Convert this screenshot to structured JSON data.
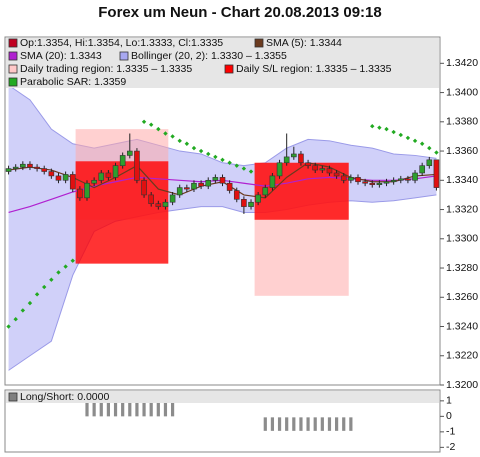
{
  "chart_data": [
    {
      "type": "candlestick",
      "title": "Forex um Neun - Chart 20.08.2013 09:18",
      "legend": [
        {
          "label": "Op:1.3354, Hi:1.3354, Lo:1.3333, Cl:1.3335",
          "color": "#c00020"
        },
        {
          "label": "SMA (5): 1.3344",
          "color": "#6b3a1e"
        },
        {
          "label": "SMA (20): 1.3343",
          "color": "#b020d0"
        },
        {
          "label": "Bollinger (20, 2): 1.3330 – 1.3355",
          "color": "#a8a8f0"
        },
        {
          "label": "Daily trading region: 1.3335 – 1.3335",
          "color": "#ffc8c8"
        },
        {
          "label": "Daily S/L region: 1.3335 – 1.3335",
          "color": "#ff0000"
        },
        {
          "label": "Parabolic SAR: 1.3359",
          "color": "#22aa22"
        }
      ],
      "up_color": "#2e9e2e",
      "down_color": "#e01010",
      "open": [
        1.3346,
        1.3348,
        1.3349,
        1.3351,
        1.3349,
        1.3348,
        1.3346,
        1.3343,
        1.334,
        1.3344,
        1.3334,
        1.3328,
        1.3338,
        1.334,
        1.3345,
        1.3342,
        1.335,
        1.3357,
        1.336,
        1.334,
        1.333,
        1.3324,
        1.3322,
        1.3325,
        1.333,
        1.3335,
        1.3334,
        1.3338,
        1.3336,
        1.334,
        1.3342,
        1.3338,
        1.3333,
        1.3327,
        1.3322,
        1.3325,
        1.333,
        1.3335,
        1.3343,
        1.3352,
        1.3356,
        1.3358,
        1.3352,
        1.335,
        1.3347,
        1.3348,
        1.3345,
        1.3343,
        1.334,
        1.3342,
        1.3339,
        1.3338,
        1.3337,
        1.3338,
        1.3339,
        1.334,
        1.3341,
        1.334,
        1.3345,
        1.335,
        1.3354
      ],
      "high": [
        1.335,
        1.3351,
        1.3353,
        1.3353,
        1.3351,
        1.335,
        1.3348,
        1.3345,
        1.3346,
        1.3346,
        1.3336,
        1.334,
        1.3342,
        1.3347,
        1.3347,
        1.3352,
        1.3359,
        1.3372,
        1.3362,
        1.3342,
        1.3332,
        1.3326,
        1.3327,
        1.3332,
        1.3337,
        1.3337,
        1.334,
        1.334,
        1.3342,
        1.3344,
        1.3344,
        1.334,
        1.3335,
        1.3329,
        1.3327,
        1.3332,
        1.3337,
        1.3345,
        1.3354,
        1.3372,
        1.3363,
        1.336,
        1.3354,
        1.3352,
        1.335,
        1.335,
        1.3347,
        1.3345,
        1.3344,
        1.3344,
        1.3341,
        1.334,
        1.334,
        1.3341,
        1.3342,
        1.3343,
        1.3343,
        1.3347,
        1.3352,
        1.3356,
        1.3354
      ],
      "low": [
        1.3344,
        1.3346,
        1.3347,
        1.3347,
        1.3346,
        1.3344,
        1.3341,
        1.3338,
        1.3338,
        1.3332,
        1.3326,
        1.3326,
        1.3336,
        1.3338,
        1.334,
        1.334,
        1.3348,
        1.3355,
        1.3338,
        1.3328,
        1.3322,
        1.332,
        1.332,
        1.3323,
        1.3328,
        1.3332,
        1.3332,
        1.3334,
        1.3334,
        1.3338,
        1.3336,
        1.3331,
        1.3325,
        1.3317,
        1.332,
        1.3323,
        1.3328,
        1.3333,
        1.3341,
        1.335,
        1.3354,
        1.335,
        1.3348,
        1.3345,
        1.3345,
        1.3343,
        1.3341,
        1.3338,
        1.3338,
        1.3337,
        1.3336,
        1.3335,
        1.3335,
        1.3336,
        1.3337,
        1.3338,
        1.3338,
        1.3338,
        1.3343,
        1.3348,
        1.3333
      ],
      "close": [
        1.3348,
        1.3349,
        1.3351,
        1.3349,
        1.3348,
        1.3346,
        1.3343,
        1.334,
        1.3344,
        1.3334,
        1.3328,
        1.3338,
        1.334,
        1.3345,
        1.3342,
        1.335,
        1.3357,
        1.336,
        1.334,
        1.333,
        1.3324,
        1.3322,
        1.3325,
        1.333,
        1.3335,
        1.3334,
        1.3338,
        1.3336,
        1.334,
        1.3342,
        1.3338,
        1.3333,
        1.3327,
        1.3322,
        1.3325,
        1.333,
        1.3335,
        1.3343,
        1.3352,
        1.3356,
        1.3358,
        1.3352,
        1.335,
        1.3347,
        1.3348,
        1.3345,
        1.3343,
        1.334,
        1.3342,
        1.3339,
        1.3338,
        1.3337,
        1.3338,
        1.3339,
        1.334,
        1.3341,
        1.334,
        1.3345,
        1.335,
        1.3354,
        1.3335
      ],
      "indicator_x": [
        0,
        3,
        6,
        9,
        12,
        15,
        18,
        21,
        24,
        27,
        30,
        33,
        36,
        39,
        42,
        45,
        48,
        51,
        54,
        57,
        60
      ],
      "bollinger_upper": [
        1.3405,
        1.3395,
        1.3375,
        1.3365,
        1.3362,
        1.3365,
        1.3368,
        1.3364,
        1.336,
        1.3358,
        1.3352,
        1.335,
        1.3352,
        1.3362,
        1.3368,
        1.3367,
        1.3364,
        1.3362,
        1.3358,
        1.3357,
        1.3355
      ],
      "bollinger_lower": [
        1.321,
        1.322,
        1.323,
        1.3275,
        1.3305,
        1.3312,
        1.3315,
        1.3318,
        1.332,
        1.3322,
        1.3322,
        1.3318,
        1.3318,
        1.332,
        1.3323,
        1.3325,
        1.3326,
        1.3325,
        1.3326,
        1.3328,
        1.333
      ],
      "sma20": [
        1.3318,
        1.3322,
        1.3327,
        1.3332,
        1.3336,
        1.3339,
        1.3342,
        1.3341,
        1.334,
        1.3339,
        1.334,
        1.3338,
        1.3336,
        1.3338,
        1.3341,
        1.3342,
        1.3341,
        1.334,
        1.334,
        1.3341,
        1.3343
      ],
      "sma5": [
        1.3347,
        1.3349,
        1.3347,
        1.3342,
        1.3335,
        1.3342,
        1.335,
        1.3334,
        1.333,
        1.3336,
        1.3339,
        1.333,
        1.3328,
        1.3342,
        1.3352,
        1.3349,
        1.3342,
        1.3339,
        1.3339,
        1.3343,
        1.3344
      ],
      "sar": [
        1.324,
        1.3245,
        1.3251,
        1.3256,
        1.3262,
        1.3267,
        1.3272,
        1.3277,
        1.3281,
        1.3285,
        null,
        null,
        null,
        null,
        null,
        null,
        null,
        null,
        null,
        1.338,
        1.3378,
        1.3375,
        1.3372,
        1.337,
        1.3367,
        1.3365,
        1.3362,
        1.336,
        1.3358,
        1.3356,
        1.3354,
        1.3352,
        1.335,
        1.3348,
        1.3346,
        null,
        null,
        null,
        null,
        null,
        null,
        null,
        null,
        null,
        null,
        null,
        null,
        null,
        null,
        null,
        null,
        1.3377,
        1.3376,
        1.3375,
        1.3373,
        1.3371,
        1.3369,
        1.3367,
        1.3365,
        1.3362,
        1.3359
      ],
      "regions": [
        {
          "x_range": [
            9.4,
            22.4
          ],
          "trading": [
            1.3313,
            1.3375
          ],
          "stop_loss": [
            1.3283,
            1.3353
          ]
        },
        {
          "x_range": [
            34.5,
            47.7
          ],
          "trading": [
            1.3261,
            1.3352
          ],
          "stop_loss": [
            1.3313,
            1.3352
          ]
        }
      ],
      "ylim": [
        1.32,
        1.3438
      ],
      "yticks": [
        {
          "value": 1.32,
          "label": "1.3200"
        },
        {
          "value": 1.322,
          "label": "1.3220"
        },
        {
          "value": 1.324,
          "label": "1.3240"
        },
        {
          "value": 1.326,
          "label": "1.3260"
        },
        {
          "value": 1.328,
          "label": "1.3280"
        },
        {
          "value": 1.33,
          "label": "1.3300"
        },
        {
          "value": 1.332,
          "label": "1.3320"
        },
        {
          "value": 1.334,
          "label": "1.3340"
        },
        {
          "value": 1.336,
          "label": "1.3360"
        },
        {
          "value": 1.338,
          "label": "1.3380"
        },
        {
          "value": 1.34,
          "label": "1.3400"
        },
        {
          "value": 1.342,
          "label": "1.3420"
        }
      ]
    },
    {
      "type": "bar",
      "legend": [
        {
          "label": "Long/Short: 0.0000",
          "color": "#808080"
        }
      ],
      "color": "#8c8c8c",
      "values": [
        0,
        0,
        0,
        0,
        0,
        0,
        0,
        0,
        0,
        0,
        0,
        1,
        1,
        1,
        1,
        1,
        1,
        1,
        1,
        1,
        1,
        1,
        1,
        1,
        0,
        0,
        0,
        0,
        0,
        0,
        0,
        0,
        0,
        0,
        0,
        0,
        -1,
        -1,
        -1,
        -1,
        -1,
        -1,
        -1,
        -1,
        -1,
        -1,
        -1,
        -1,
        -1,
        0,
        0,
        0,
        0,
        0,
        0,
        0,
        0,
        0,
        0,
        0,
        0
      ],
      "ylim": [
        -2.3,
        1.7
      ],
      "yticks": [
        1,
        0,
        -1,
        -2
      ]
    }
  ]
}
